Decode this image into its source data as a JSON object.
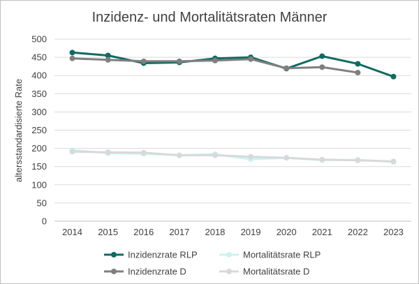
{
  "chart_data": {
    "type": "line",
    "title": "Inzidenz- und Mortalitätsraten Männer",
    "xlabel": "",
    "ylabel": "altersstandardisierte Rate",
    "categories": [
      "2014",
      "2015",
      "2016",
      "2017",
      "2018",
      "2019",
      "2020",
      "2021",
      "2022",
      "2023"
    ],
    "ylim": [
      0,
      500
    ],
    "yticks": [
      0,
      50,
      100,
      150,
      200,
      250,
      300,
      350,
      400,
      450,
      500
    ],
    "grid": true,
    "legend_position": "bottom",
    "series": [
      {
        "name": "Inzidenzrate RLP",
        "color": "#0f6b62",
        "values": [
          463,
          455,
          434,
          436,
          447,
          450,
          419,
          453,
          432,
          397
        ]
      },
      {
        "name": "Mortalitätsrate RLP",
        "color": "#c9f3f3",
        "values": [
          195,
          187,
          185,
          181,
          184,
          170,
          174,
          168,
          168,
          163
        ]
      },
      {
        "name": "Inzidenzrate D",
        "color": "#7f7f7f",
        "values": [
          447,
          443,
          439,
          439,
          441,
          445,
          420,
          423,
          408,
          null
        ]
      },
      {
        "name": "Mortalitätsrate D",
        "color": "#d9d9d9",
        "values": [
          191,
          189,
          188,
          181,
          181,
          177,
          174,
          169,
          167,
          164
        ]
      }
    ]
  }
}
